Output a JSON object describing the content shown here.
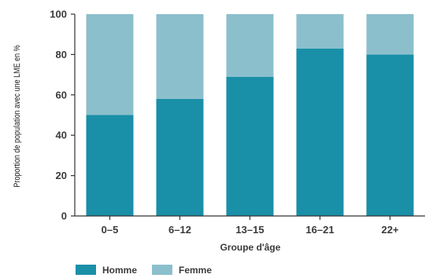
{
  "chart_data": {
    "type": "bar",
    "stacked": true,
    "categories": [
      "0–5",
      "6–12",
      "13–15",
      "16–21",
      "22+"
    ],
    "series": [
      {
        "name": "Homme",
        "values": [
          50,
          58,
          69,
          83,
          80
        ],
        "color": "#1a8fa8"
      },
      {
        "name": "Femme",
        "values": [
          50,
          42,
          31,
          17,
          20
        ],
        "color": "#8cbfcc"
      }
    ],
    "xlabel": "Groupe d'âge",
    "ylabel": "Proportion de population avec une LME en %",
    "ylim": [
      0,
      100
    ],
    "yticks": [
      0,
      20,
      40,
      60,
      80,
      100
    ],
    "grid": false,
    "legend_position": "bottom-left"
  }
}
